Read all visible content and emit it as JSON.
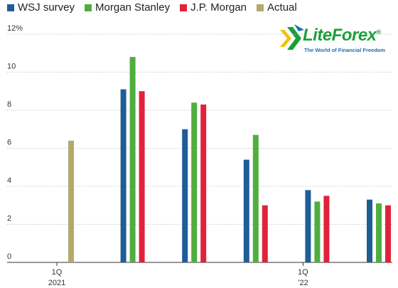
{
  "chart_data": {
    "type": "bar",
    "title": "",
    "xlabel": "",
    "ylabel": "",
    "ylim": [
      0,
      12
    ],
    "y_ticks": [
      "0",
      "2",
      "4",
      "6",
      "8",
      "10",
      "12%"
    ],
    "x_tick_labels": [
      {
        "line1": "1Q",
        "line2": "2021",
        "group": 0
      },
      {
        "line1": "1Q",
        "line2": "’22",
        "group": 4
      }
    ],
    "grid": true,
    "legend_placement": "top-left",
    "series": [
      {
        "name": "WSJ survey",
        "color": "#1f5d97",
        "values": [
          null,
          9.1,
          7.0,
          5.4,
          3.8,
          3.3
        ]
      },
      {
        "name": "Morgan Stanley",
        "color": "#4fae3f",
        "values": [
          null,
          10.8,
          8.4,
          6.7,
          3.2,
          3.1
        ]
      },
      {
        "name": "J.P. Morgan",
        "color": "#e0233a",
        "values": [
          null,
          9.0,
          8.3,
          3.0,
          3.5,
          3.0
        ]
      },
      {
        "name": "Actual",
        "color": "#b3a96a",
        "values": [
          6.4,
          null,
          null,
          null,
          null,
          null
        ]
      }
    ]
  },
  "logo": {
    "word": "LiteForex",
    "reg": "®",
    "tagline": "The World of Financial Freedom"
  }
}
